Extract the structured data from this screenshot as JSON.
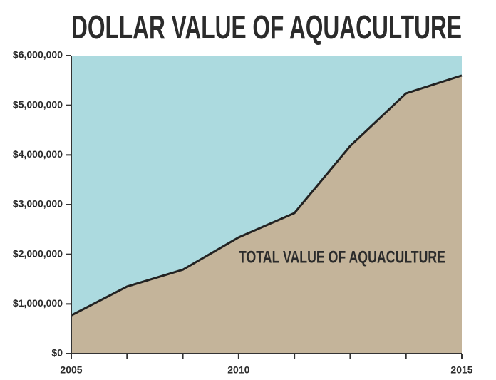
{
  "chart_data": {
    "type": "area",
    "title": "DOLLAR VALUE OF AQUACULTURE",
    "annotation": "TOTAL VALUE OF AQUACULTURE",
    "categories": [
      "2005",
      null,
      null,
      "2010",
      null,
      null,
      null,
      "2015"
    ],
    "series": [
      {
        "name": "TOTAL VALUE OF AQUACULTURE",
        "color": "#c4b49a",
        "values": [
          770000,
          1350000,
          1690000,
          2340000,
          2830000,
          4180000,
          5240000,
          5600000
        ]
      }
    ],
    "background_color": "#acdadf",
    "line_color": "#222222",
    "ylim": [
      0,
      6000000
    ],
    "yticks": [
      {
        "value": 0,
        "label": "$0"
      },
      {
        "value": 1000000,
        "label": "$1,000,000"
      },
      {
        "value": 2000000,
        "label": "$2,000,000"
      },
      {
        "value": 3000000,
        "label": "$3,000,000"
      },
      {
        "value": 4000000,
        "label": "$4,000,000"
      },
      {
        "value": 5000000,
        "label": "$5,000,000"
      },
      {
        "value": 6000000,
        "label": "$6,000,000"
      }
    ]
  }
}
